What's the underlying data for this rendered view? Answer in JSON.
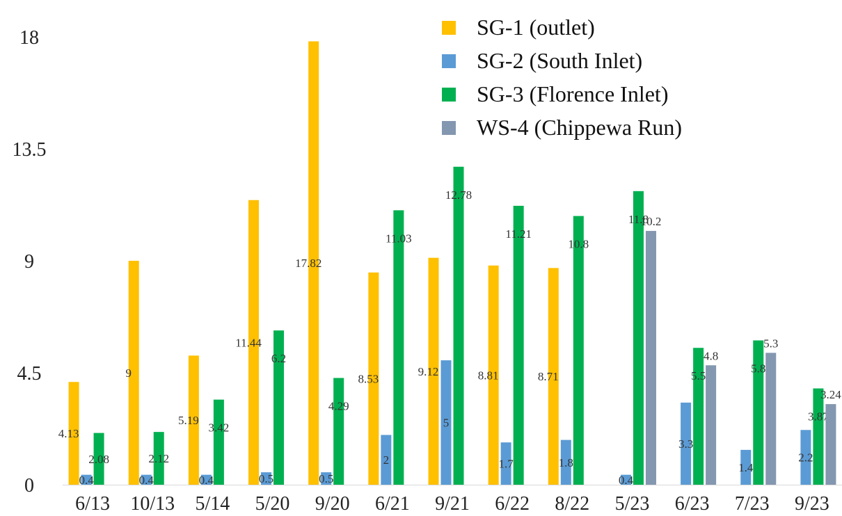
{
  "chart_data": {
    "type": "bar",
    "title": "",
    "xlabel": "",
    "ylabel": "",
    "ylim": [
      0,
      18
    ],
    "yticks": [
      "0",
      "4.5",
      "9",
      "13.5",
      "18"
    ],
    "categories": [
      "6/13",
      "10/13",
      "5/14",
      "5/20",
      "9/20",
      "6/21",
      "9/21",
      "6/22",
      "8/22",
      "5/23",
      "6/23",
      "7/23",
      "9/23"
    ],
    "series": [
      {
        "name": "SG-1 (outlet)",
        "color": "#FFC000",
        "values": [
          4.13,
          9,
          5.19,
          11.44,
          17.82,
          8.53,
          9.12,
          8.81,
          8.71,
          null,
          null,
          null,
          null
        ],
        "labels": [
          "4.13",
          "9",
          "5.19",
          "11.44",
          "17.82",
          "8.53",
          "9.12",
          "8.81",
          "8.71",
          null,
          null,
          null,
          null
        ]
      },
      {
        "name": "SG-2 (South Inlet)",
        "color": "#5B9BD5",
        "values": [
          0.4,
          0.4,
          0.4,
          0.5,
          0.5,
          2,
          5,
          1.7,
          1.8,
          0.4,
          3.3,
          1.4,
          2.2
        ],
        "labels": [
          "0.4",
          "0.4",
          "0.4",
          "0.5",
          "0.5",
          "2",
          "5",
          "1.7",
          "1.8",
          "0.4",
          "3.3",
          "1.4",
          "2.2"
        ]
      },
      {
        "name": "SG-3 (Florence Inlet)",
        "color": "#00B050",
        "values": [
          2.08,
          2.12,
          3.42,
          6.2,
          4.29,
          11.03,
          12.78,
          11.21,
          10.8,
          11.8,
          5.5,
          5.8,
          3.87
        ],
        "labels": [
          "2.08",
          "2.12",
          "3.42",
          "6.2",
          "4.29",
          "11.03",
          "12.78",
          "11.21",
          "10.8",
          "11.8",
          "5.5",
          "5.8",
          "3.87"
        ]
      },
      {
        "name": "WS-4 (Chippewa Run)",
        "color": "#8497B0",
        "values": [
          null,
          null,
          null,
          null,
          null,
          null,
          null,
          null,
          null,
          10.2,
          4.8,
          5.3,
          3.24
        ],
        "labels": [
          null,
          null,
          null,
          null,
          null,
          null,
          null,
          null,
          null,
          "10.2",
          "4.8",
          "5.3",
          "3.24"
        ]
      }
    ],
    "grid": false,
    "legend": "top-right"
  }
}
